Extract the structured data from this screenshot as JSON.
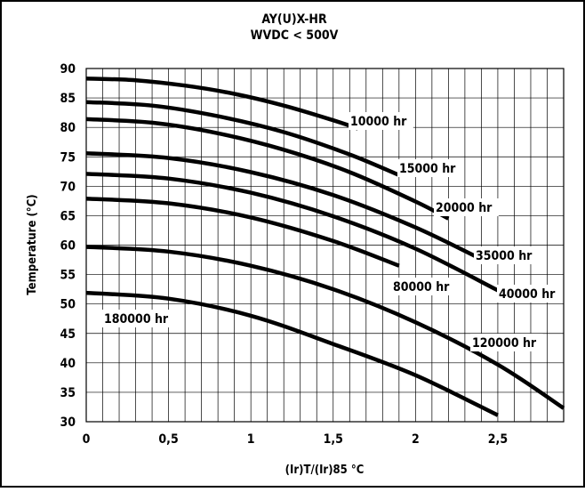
{
  "chart_data": {
    "type": "line",
    "title": "AY(U)X-HR",
    "subtitle": "WVDC < 500V",
    "xlabel": "(Ir)T/(Ir)85 °C",
    "ylabel": "Temperature (°C)",
    "xlim": [
      0,
      2.9
    ],
    "ylim": [
      30,
      90
    ],
    "x_ticks": [
      "0",
      "0,5",
      "1",
      "1,5",
      "2",
      "2,5"
    ],
    "x_tick_values": [
      0,
      0.5,
      1,
      1.5,
      2,
      2.5
    ],
    "y_ticks": [
      30,
      35,
      40,
      45,
      50,
      55,
      60,
      65,
      70,
      75,
      80,
      85,
      90
    ],
    "grid": true,
    "line_color": "#000000",
    "series": [
      {
        "name": "10000 hr",
        "x": [
          0,
          0.3,
          0.6,
          0.9,
          1.2,
          1.5,
          1.65
        ],
        "y": [
          88.3,
          88.0,
          87.1,
          85.7,
          83.7,
          81.2,
          79.8
        ]
      },
      {
        "name": "15000 hr",
        "x": [
          0,
          0.4,
          0.8,
          1.2,
          1.6,
          1.9
        ],
        "y": [
          84.3,
          83.7,
          81.9,
          79.2,
          75.4,
          71.9
        ]
      },
      {
        "name": "20000 hr",
        "x": [
          0,
          0.4,
          0.8,
          1.2,
          1.6,
          2.0,
          2.2
        ],
        "y": [
          81.4,
          80.8,
          79.0,
          76.2,
          72.4,
          67.4,
          64.5
        ]
      },
      {
        "name": "35000 hr",
        "x": [
          0,
          0.5,
          1.0,
          1.5,
          2.0,
          2.4
        ],
        "y": [
          75.6,
          74.8,
          72.4,
          68.5,
          63.0,
          57.6
        ]
      },
      {
        "name": "40000 hr",
        "x": [
          0,
          0.5,
          1.0,
          1.5,
          2.0,
          2.5
        ],
        "y": [
          72.1,
          71.3,
          68.9,
          64.9,
          59.4,
          52.3
        ]
      },
      {
        "name": "80000 hr",
        "x": [
          0,
          0.5,
          1.0,
          1.5,
          1.9
        ],
        "y": [
          67.9,
          67.1,
          64.7,
          60.7,
          56.5
        ]
      },
      {
        "name": "120000 hr",
        "x": [
          0,
          0.5,
          1.0,
          1.5,
          2.0,
          2.5,
          2.9
        ],
        "y": [
          59.7,
          58.9,
          56.5,
          52.5,
          46.9,
          39.7,
          32.3
        ]
      },
      {
        "name": "180000 hr",
        "x": [
          0,
          0.5,
          1.0,
          1.5,
          2.0,
          2.5
        ],
        "y": [
          51.9,
          50.9,
          48.0,
          43.2,
          37.9,
          31.1
        ]
      }
    ]
  }
}
